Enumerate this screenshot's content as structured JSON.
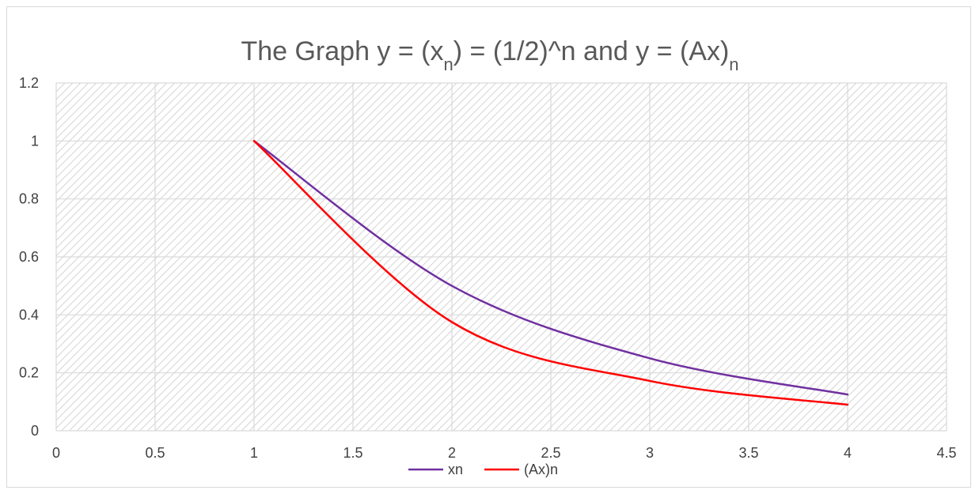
{
  "chart_data": {
    "type": "line",
    "title": {
      "parts": [
        {
          "text": "The Graph y = (x"
        },
        {
          "text": "n",
          "sub": true
        },
        {
          "text": ") = (1/2)^n  and y = (Ax)"
        },
        {
          "text": "n",
          "sub": true
        }
      ]
    },
    "xlabel": "",
    "ylabel": "",
    "xlim": [
      0,
      4.5
    ],
    "ylim": [
      0,
      1.2
    ],
    "x_ticks": [
      0,
      0.5,
      1,
      1.5,
      2,
      2.5,
      3,
      3.5,
      4,
      4.5
    ],
    "y_ticks": [
      0,
      0.2,
      0.4,
      0.6,
      0.8,
      1,
      1.2
    ],
    "x_tick_labels": [
      "0",
      "0.5",
      "1",
      "1.5",
      "2",
      "2.5",
      "3",
      "3.5",
      "4",
      "4.5"
    ],
    "y_tick_labels": [
      "0",
      "0.2",
      "0.4",
      "0.6",
      "0.8",
      "1",
      "1.2"
    ],
    "grid": true,
    "plot_background": "hatched",
    "smooth": true,
    "legend": "bottom",
    "x": [
      1,
      2,
      3,
      4
    ],
    "series": [
      {
        "name": "xn",
        "color": "#7030a0",
        "values": [
          1,
          0.5,
          0.25,
          0.125
        ]
      },
      {
        "name": "(Ax)n",
        "color": "#ff0000",
        "values": [
          1,
          0.375,
          0.172,
          0.09
        ]
      }
    ]
  }
}
